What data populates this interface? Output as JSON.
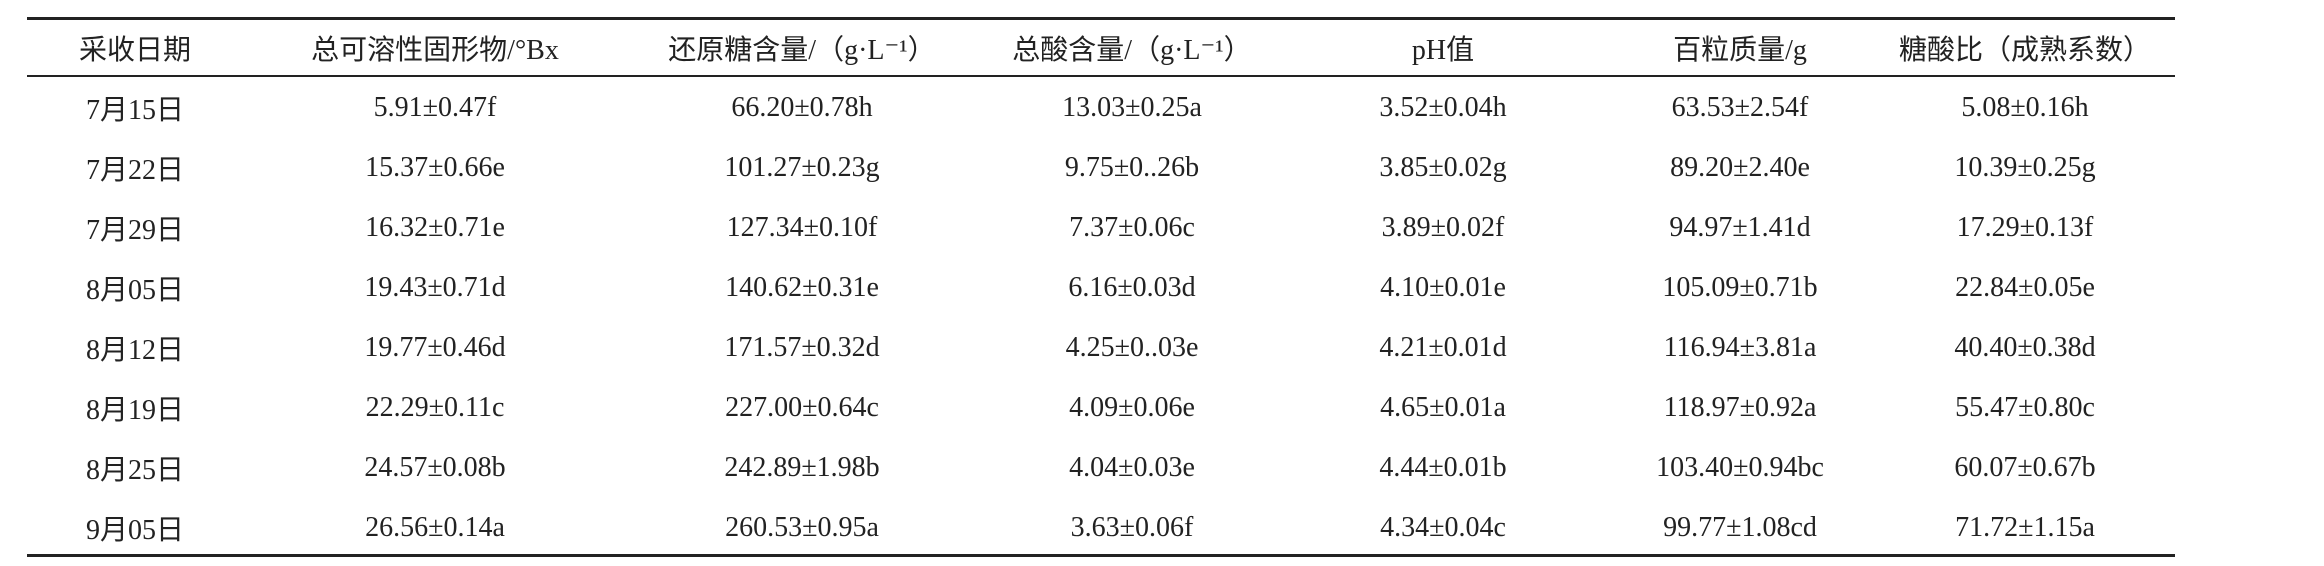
{
  "table": {
    "header": [
      "采收日期",
      "总可溶性固形物/°Bx",
      "还原糖含量/（g·L⁻¹）",
      "总酸含量/（g·L⁻¹）",
      "pH值",
      "百粒质量/g",
      "糖酸比（成熟系数）"
    ],
    "rows": [
      [
        "7月15日",
        "5.91±0.47f",
        "66.20±0.78h",
        "13.03±0.25a",
        "3.52±0.04h",
        "63.53±2.54f",
        "5.08±0.16h"
      ],
      [
        "7月22日",
        "15.37±0.66e",
        "101.27±0.23g",
        "9.75±0..26b",
        "3.85±0.02g",
        "89.20±2.40e",
        "10.39±0.25g"
      ],
      [
        "7月29日",
        "16.32±0.71e",
        "127.34±0.10f",
        "7.37±0.06c",
        "3.89±0.02f",
        "94.97±1.41d",
        "17.29±0.13f"
      ],
      [
        "8月05日",
        "19.43±0.71d",
        "140.62±0.31e",
        "6.16±0.03d",
        "4.10±0.01e",
        "105.09±0.71b",
        "22.84±0.05e"
      ],
      [
        "8月12日",
        "19.77±0.46d",
        "171.57±0.32d",
        "4.25±0..03e",
        "4.21±0.01d",
        "116.94±3.81a",
        "40.40±0.38d"
      ],
      [
        "8月19日",
        "22.29±0.11c",
        "227.00±0.64c",
        "4.09±0.06e",
        "4.65±0.01a",
        "118.97±0.92a",
        "55.47±0.80c"
      ],
      [
        "8月25日",
        "24.57±0.08b",
        "242.89±1.98b",
        "4.04±0.03e",
        "4.44±0.01b",
        "103.40±0.94bc",
        "60.07±0.67b"
      ],
      [
        "9月05日",
        "26.56±0.14a",
        "260.53±0.95a",
        "3.63±0.06f",
        "4.34±0.04c",
        "99.77±1.08cd",
        "71.72±1.15a"
      ]
    ]
  }
}
